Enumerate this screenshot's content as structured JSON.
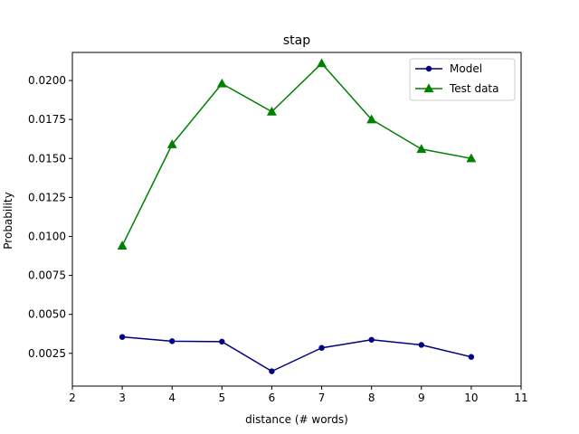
{
  "chart_data": {
    "type": "line",
    "title": "stap",
    "xlabel": "distance (# words)",
    "ylabel": "Probability",
    "xlim": [
      2,
      11
    ],
    "ylim": [
      0.0004,
      0.0218
    ],
    "xticks": [
      "2",
      "3",
      "4",
      "5",
      "6",
      "7",
      "8",
      "9",
      "10",
      "11"
    ],
    "yticks": [
      "0.0025",
      "0.0050",
      "0.0075",
      "0.0100",
      "0.0125",
      "0.0150",
      "0.0175",
      "0.0200"
    ],
    "grid": false,
    "legend_position": "top-right",
    "x": [
      3,
      4,
      5,
      6,
      7,
      8,
      9,
      10
    ],
    "series": [
      {
        "name": "Model",
        "color": "#000080",
        "marker": "circle",
        "values": [
          0.00355,
          0.00328,
          0.00325,
          0.00135,
          0.00285,
          0.00337,
          0.00304,
          0.00227
        ]
      },
      {
        "name": "Test data",
        "color": "#008000",
        "marker": "triangle",
        "values": [
          0.0094,
          0.0159,
          0.0198,
          0.018,
          0.0211,
          0.0175,
          0.0156,
          0.015
        ]
      }
    ]
  }
}
